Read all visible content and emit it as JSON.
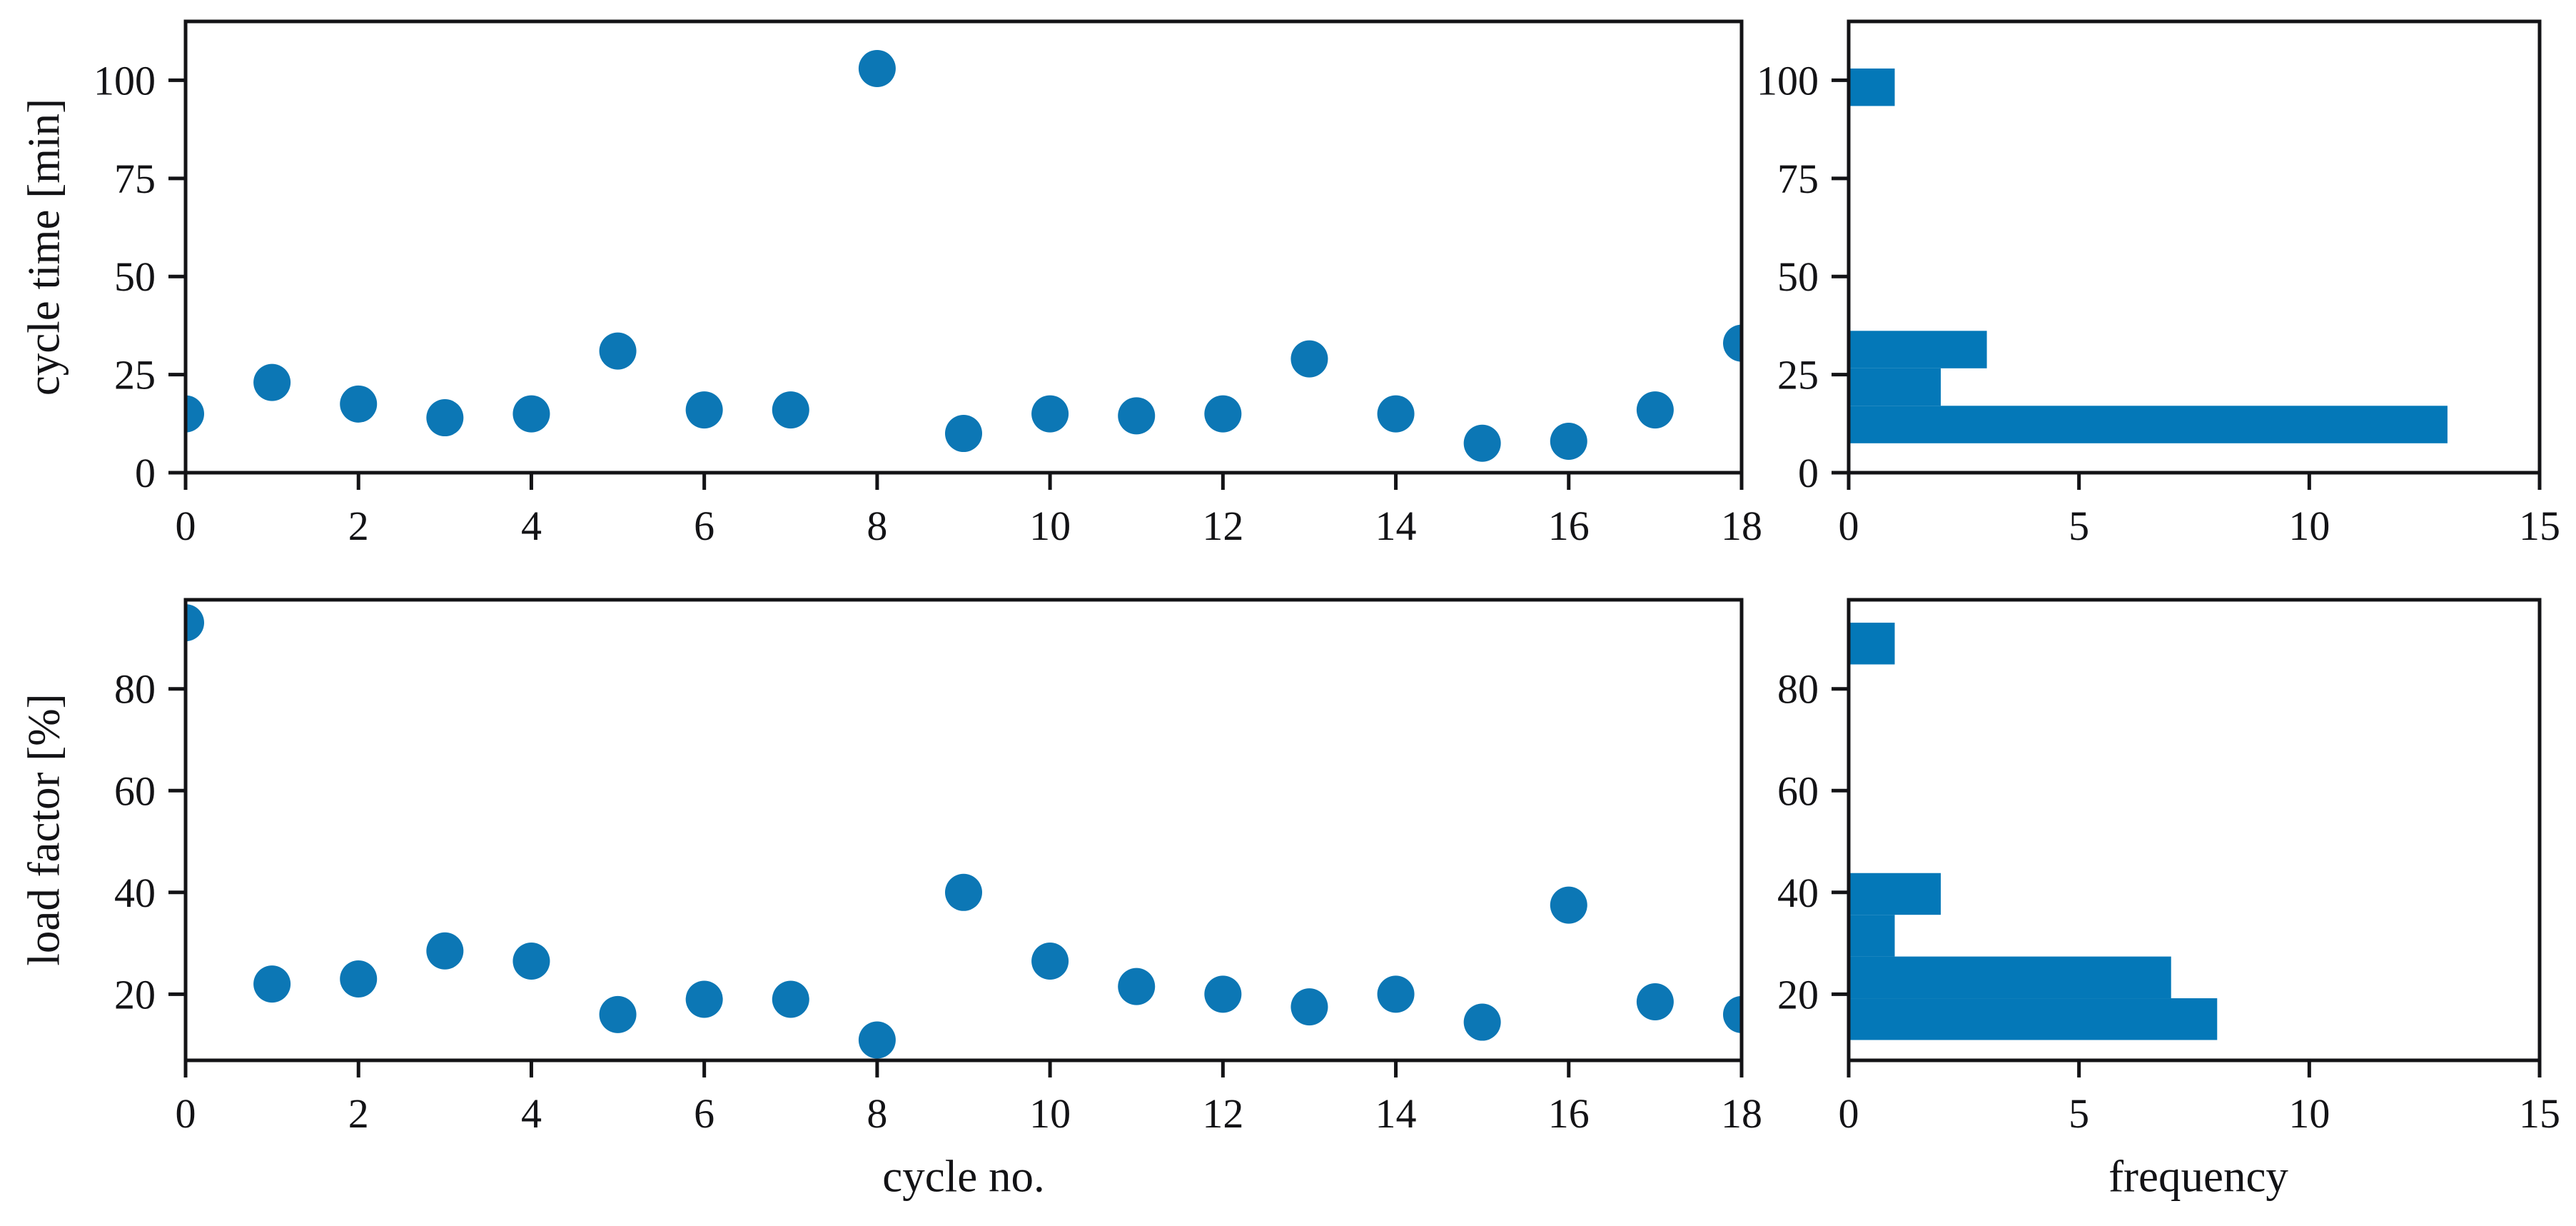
{
  "style": {
    "background": "#ffffff",
    "marker_color": "#0c77b5",
    "bar_color": "#0478b8",
    "spine_color": "#131316",
    "text_color": "#131316"
  },
  "labels": {
    "top_left_ylabel": "cycle time [min]",
    "bottom_left_ylabel": "load factor [%]",
    "bottom_left_xlabel": "cycle no.",
    "bottom_right_xlabel": "frequency"
  },
  "chart_data": [
    {
      "id": "cycle-time-scatter",
      "type": "scatter",
      "title": "",
      "xlabel": "",
      "ylabel": "cycle time [min]",
      "x": [
        0,
        1,
        2,
        3,
        4,
        5,
        6,
        7,
        8,
        9,
        10,
        11,
        12,
        13,
        14,
        15,
        16,
        17,
        18
      ],
      "y": [
        15,
        23,
        17.5,
        14,
        15,
        31,
        16,
        16,
        103,
        10,
        15,
        14.5,
        15,
        29,
        15,
        7.5,
        8,
        16,
        33
      ],
      "xlim": [
        0,
        18
      ],
      "ylim": [
        0,
        115
      ],
      "xticks": [
        0,
        2,
        4,
        6,
        8,
        10,
        12,
        14,
        16,
        18
      ],
      "yticks": [
        0,
        25,
        50,
        75,
        100
      ],
      "grid": false,
      "color": "#0c77b5"
    },
    {
      "id": "cycle-time-histogram",
      "type": "hbar",
      "title": "",
      "xlabel": "",
      "ylabel": "",
      "bin_edges": [
        7.5,
        17.05,
        26.6,
        36.15,
        45.7,
        55.25,
        64.8,
        74.35,
        83.9,
        93.45,
        103
      ],
      "counts": [
        13,
        2,
        3,
        0,
        0,
        0,
        0,
        0,
        0,
        1
      ],
      "xlim": [
        0,
        15
      ],
      "ylim": [
        0,
        115
      ],
      "xticks": [
        0,
        5,
        10,
        15
      ],
      "yticks": [
        0,
        25,
        50,
        75,
        100
      ],
      "grid": false,
      "color": "#0478b8"
    },
    {
      "id": "load-factor-scatter",
      "type": "scatter",
      "title": "",
      "xlabel": "cycle no.",
      "ylabel": "load factor [%]",
      "x": [
        0,
        1,
        2,
        3,
        4,
        5,
        6,
        7,
        8,
        9,
        10,
        11,
        12,
        13,
        14,
        15,
        16,
        17,
        18
      ],
      "y": [
        93,
        22,
        23,
        28.5,
        26.5,
        16,
        19,
        19,
        11,
        40,
        26.5,
        21.5,
        20,
        17.5,
        20,
        14.5,
        37.5,
        18.5,
        16
      ],
      "xlim": [
        0,
        18
      ],
      "ylim": [
        7,
        97.5
      ],
      "xticks": [
        0,
        2,
        4,
        6,
        8,
        10,
        12,
        14,
        16,
        18
      ],
      "yticks": [
        20,
        40,
        60,
        80
      ],
      "grid": false,
      "color": "#0c77b5"
    },
    {
      "id": "load-factor-histogram",
      "type": "hbar",
      "title": "",
      "xlabel": "frequency",
      "ylabel": "",
      "bin_edges": [
        11,
        19.2,
        27.4,
        35.6,
        43.8,
        52,
        60.2,
        68.4,
        76.6,
        84.8,
        93
      ],
      "counts": [
        8,
        7,
        1,
        2,
        0,
        0,
        0,
        0,
        0,
        1
      ],
      "xlim": [
        0,
        15
      ],
      "ylim": [
        7,
        97.5
      ],
      "xticks": [
        0,
        5,
        10,
        15
      ],
      "yticks": [
        20,
        40,
        60,
        80
      ],
      "grid": false,
      "color": "#0478b8"
    }
  ]
}
